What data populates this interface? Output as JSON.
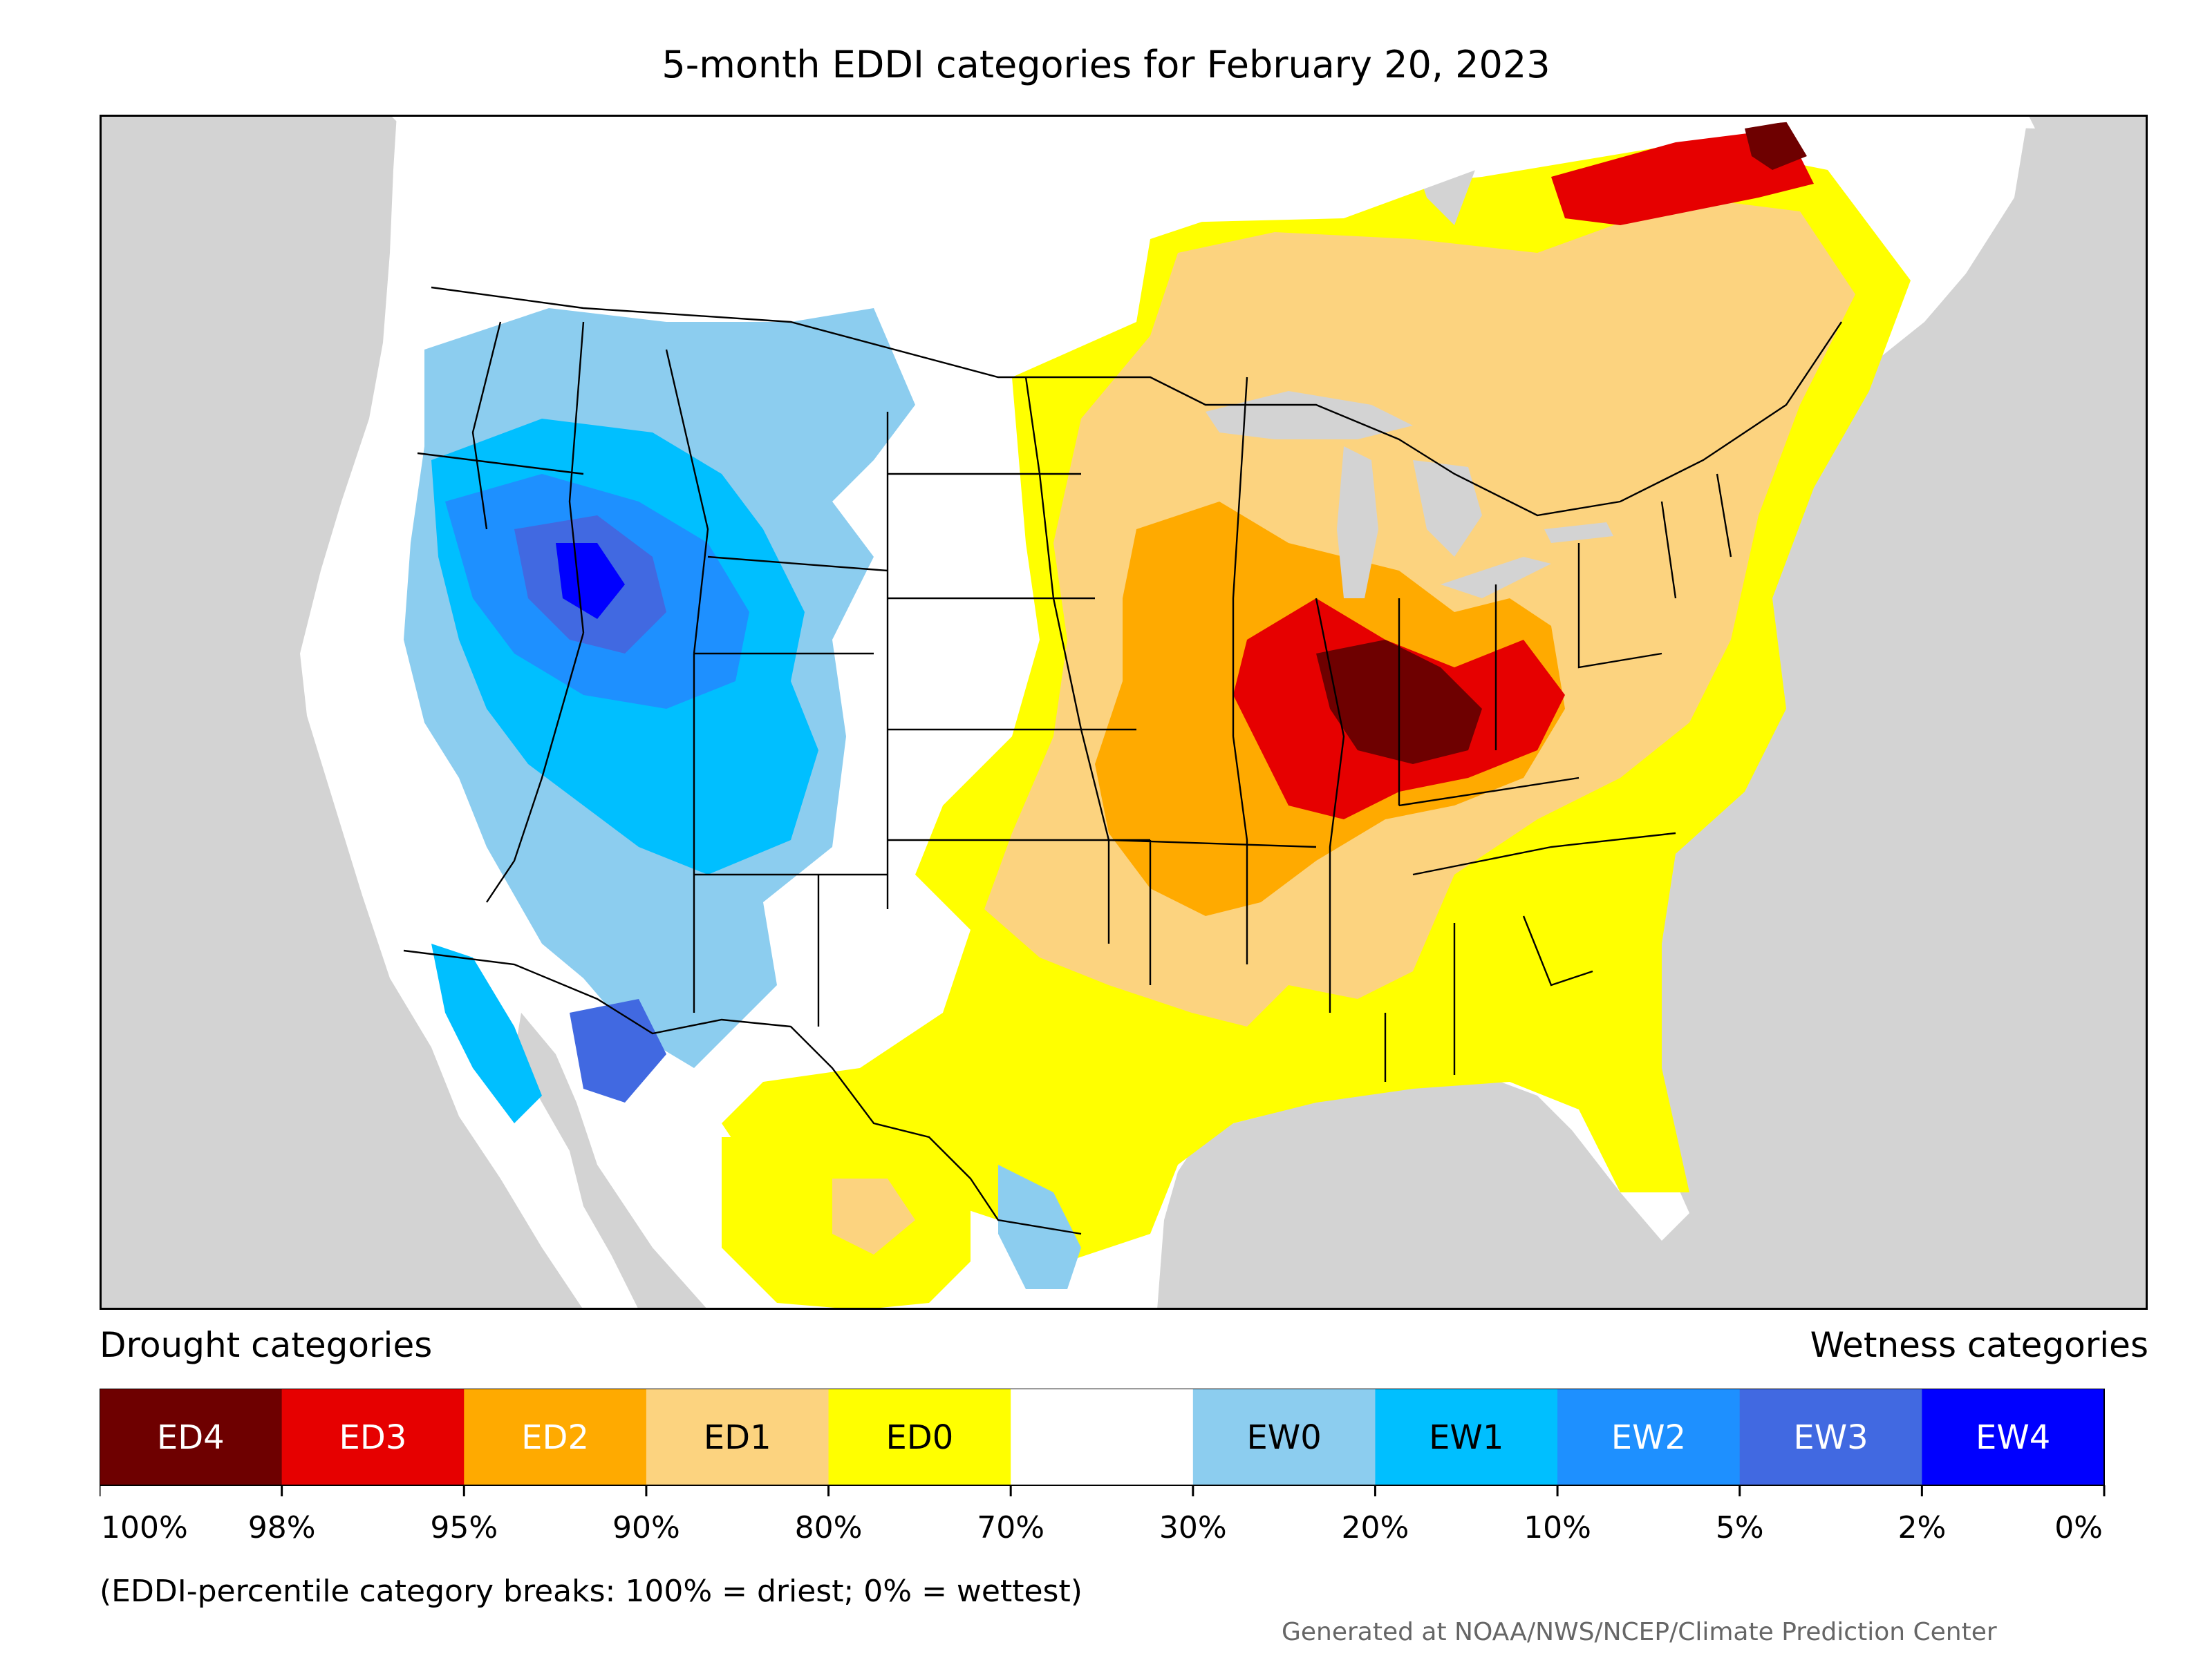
{
  "title": "5-month EDDI categories for February 20, 2023",
  "legend": {
    "drought_heading": "Drought categories",
    "wetness_heading": "Wetness categories",
    "categories": [
      {
        "label": "ED4",
        "color": "#6e0000",
        "text_color": "#ffffff"
      },
      {
        "label": "ED3",
        "color": "#e60000",
        "text_color": "#ffffff"
      },
      {
        "label": "ED2",
        "color": "#ffaa00",
        "text_color": "#ffffff"
      },
      {
        "label": "ED1",
        "color": "#fcd37f",
        "text_color": "#000000"
      },
      {
        "label": "ED0",
        "color": "#ffff00",
        "text_color": "#000000"
      },
      {
        "label": "",
        "color": "#ffffff",
        "text_color": "#000000"
      },
      {
        "label": "EW0",
        "color": "#8ccdef",
        "text_color": "#000000"
      },
      {
        "label": "EW1",
        "color": "#00bfff",
        "text_color": "#000000"
      },
      {
        "label": "EW2",
        "color": "#1e90ff",
        "text_color": "#ffffff"
      },
      {
        "label": "EW3",
        "color": "#4169e1",
        "text_color": "#ffffff"
      },
      {
        "label": "EW4",
        "color": "#0000ff",
        "text_color": "#ffffff"
      }
    ],
    "breaks": [
      "100%",
      "98%",
      "95%",
      "90%",
      "80%",
      "70%",
      "30%",
      "20%",
      "10%",
      "5%",
      "2%",
      "0%"
    ]
  },
  "note": "(EDDI-percentile category breaks: 100% = driest; 0% = wettest)",
  "credit": "Generated at NOAA/NWS/NCEP/Climate Prediction Center",
  "map": {
    "ocean_color": "#d3d3d3",
    "land_color": "#ffffff"
  }
}
